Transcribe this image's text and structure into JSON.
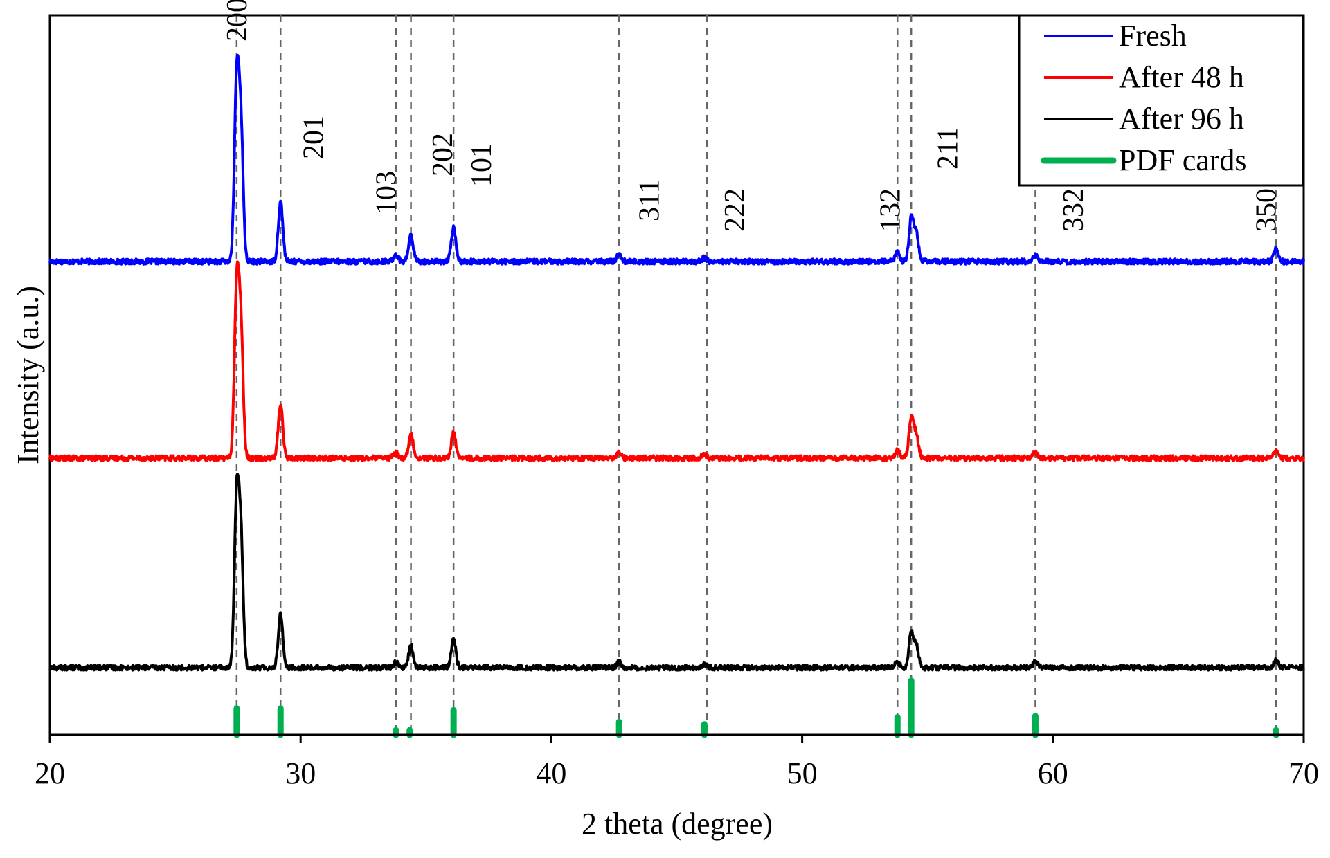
{
  "chart_data": {
    "type": "line",
    "xlabel": "2 theta (degree)",
    "ylabel": "Intensity (a.u.)",
    "xlim": [
      20,
      70
    ],
    "x_ticks": [
      20,
      30,
      40,
      50,
      60,
      70
    ],
    "grid": false,
    "legend_position": "top-right",
    "legend": [
      {
        "label": "Fresh",
        "color": "#0000ff"
      },
      {
        "label": "After 48 h",
        "color": "#ff0000"
      },
      {
        "label": "After 96 h",
        "color": "#000000"
      },
      {
        "label": "PDF cards",
        "color": "#00b050"
      }
    ],
    "series": [
      {
        "name": "Fresh",
        "color": "#0000ff",
        "peaks": [
          {
            "x": 27.45,
            "height": 0.95
          },
          {
            "x": 27.62,
            "height": 0.7
          },
          {
            "x": 29.2,
            "height": 0.32
          },
          {
            "x": 33.8,
            "height": 0.04
          },
          {
            "x": 34.4,
            "height": 0.14
          },
          {
            "x": 36.1,
            "height": 0.18
          },
          {
            "x": 42.7,
            "height": 0.04
          },
          {
            "x": 46.1,
            "height": 0.02
          },
          {
            "x": 53.8,
            "height": 0.05
          },
          {
            "x": 54.35,
            "height": 0.23
          },
          {
            "x": 54.55,
            "height": 0.15
          },
          {
            "x": 59.3,
            "height": 0.03
          },
          {
            "x": 68.9,
            "height": 0.07
          }
        ]
      },
      {
        "name": "After 48 h",
        "color": "#ff0000",
        "peaks": [
          {
            "x": 27.45,
            "height": 0.92
          },
          {
            "x": 27.62,
            "height": 0.7
          },
          {
            "x": 29.2,
            "height": 0.3
          },
          {
            "x": 33.8,
            "height": 0.03
          },
          {
            "x": 34.4,
            "height": 0.13
          },
          {
            "x": 36.1,
            "height": 0.14
          },
          {
            "x": 42.7,
            "height": 0.03
          },
          {
            "x": 46.1,
            "height": 0.02
          },
          {
            "x": 53.8,
            "height": 0.04
          },
          {
            "x": 54.35,
            "height": 0.22
          },
          {
            "x": 54.55,
            "height": 0.13
          },
          {
            "x": 59.3,
            "height": 0.03
          },
          {
            "x": 68.9,
            "height": 0.04
          }
        ]
      },
      {
        "name": "After 96 h",
        "color": "#000000",
        "peaks": [
          {
            "x": 27.45,
            "height": 0.92
          },
          {
            "x": 27.62,
            "height": 0.7
          },
          {
            "x": 29.2,
            "height": 0.3
          },
          {
            "x": 33.8,
            "height": 0.03
          },
          {
            "x": 34.4,
            "height": 0.12
          },
          {
            "x": 36.1,
            "height": 0.16
          },
          {
            "x": 42.7,
            "height": 0.03
          },
          {
            "x": 46.1,
            "height": 0.02
          },
          {
            "x": 53.8,
            "height": 0.03
          },
          {
            "x": 54.35,
            "height": 0.19
          },
          {
            "x": 54.55,
            "height": 0.12
          },
          {
            "x": 59.3,
            "height": 0.03
          },
          {
            "x": 68.9,
            "height": 0.04
          }
        ]
      }
    ],
    "pdf_cards": [
      {
        "x": 27.45,
        "intensity": 0.45
      },
      {
        "x": 29.2,
        "intensity": 0.45
      },
      {
        "x": 33.8,
        "intensity": 0.08
      },
      {
        "x": 34.35,
        "intensity": 0.08
      },
      {
        "x": 36.1,
        "intensity": 0.42
      },
      {
        "x": 42.7,
        "intensity": 0.22
      },
      {
        "x": 46.1,
        "intensity": 0.18
      },
      {
        "x": 53.8,
        "intensity": 0.3
      },
      {
        "x": 54.35,
        "intensity": 0.92
      },
      {
        "x": 59.3,
        "intensity": 0.32
      },
      {
        "x": 68.9,
        "intensity": 0.08
      }
    ],
    "reference_lines": [
      27.45,
      29.2,
      33.8,
      34.4,
      36.1,
      42.7,
      46.2,
      53.8,
      54.35,
      59.3,
      68.9
    ],
    "annotations": [
      {
        "text": "200",
        "x": 27.45
      },
      {
        "text": "201",
        "x": 30.5
      },
      {
        "text": "103",
        "x": 33.4
      },
      {
        "text": "202",
        "x": 35.65
      },
      {
        "text": "101",
        "x": 37.2
      },
      {
        "text": "311",
        "x": 43.9
      },
      {
        "text": "222",
        "x": 47.3
      },
      {
        "text": "132",
        "x": 53.5
      },
      {
        "text": "211",
        "x": 55.8
      },
      {
        "text": "332",
        "x": 60.8
      },
      {
        "text": "350",
        "x": 68.5
      }
    ]
  }
}
